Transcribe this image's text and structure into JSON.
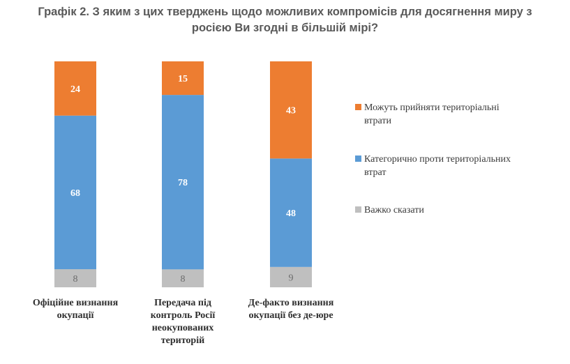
{
  "chart_data": {
    "type": "bar",
    "stacked": true,
    "title": "Графік 2. З яким з цих тверджень щодо можливих компромісів для досягнення миру з росією Ви згодні в більшій мірі?",
    "title_lines": [
      "Графік 2. З яким з цих тверджень щодо можливих компромісів для досягнення миру з",
      "росією Ви згодні в більшій мірі?"
    ],
    "categories": [
      "Офіційне визнання окупації",
      "Передача під контроль Росії неокупованих територій",
      "Де-факто визнання окупації без де-юре"
    ],
    "category_lines": [
      [
        "Офіційне визнання",
        "окупації"
      ],
      [
        "Передача під",
        "контроль Росії",
        "неокупованих",
        "територій"
      ],
      [
        "Де-факто визнання",
        "окупації без де-юре"
      ]
    ],
    "series": [
      {
        "name": "Важко сказати",
        "values": [
          8,
          8,
          9
        ],
        "color": "#bfbfbf"
      },
      {
        "name": "Категорично проти територіальних втрат",
        "values": [
          68,
          78,
          48
        ],
        "color": "#5b9bd5"
      },
      {
        "name": "Можуть прийняти територіальні втрати",
        "values": [
          24,
          15,
          43
        ],
        "color": "#ed7d31"
      }
    ],
    "legend": {
      "placement": "right",
      "order": [
        {
          "lines": [
            "Можуть прийняти територіальні",
            "втрати"
          ],
          "color": "#ed7d31"
        },
        {
          "lines": [
            "Категорично проти територіальних",
            "втрат"
          ],
          "color": "#5b9bd5"
        },
        {
          "lines": [
            "Важко сказати"
          ],
          "color": "#bfbfbf"
        }
      ]
    },
    "ylim": [
      0,
      100
    ],
    "grid": false
  }
}
